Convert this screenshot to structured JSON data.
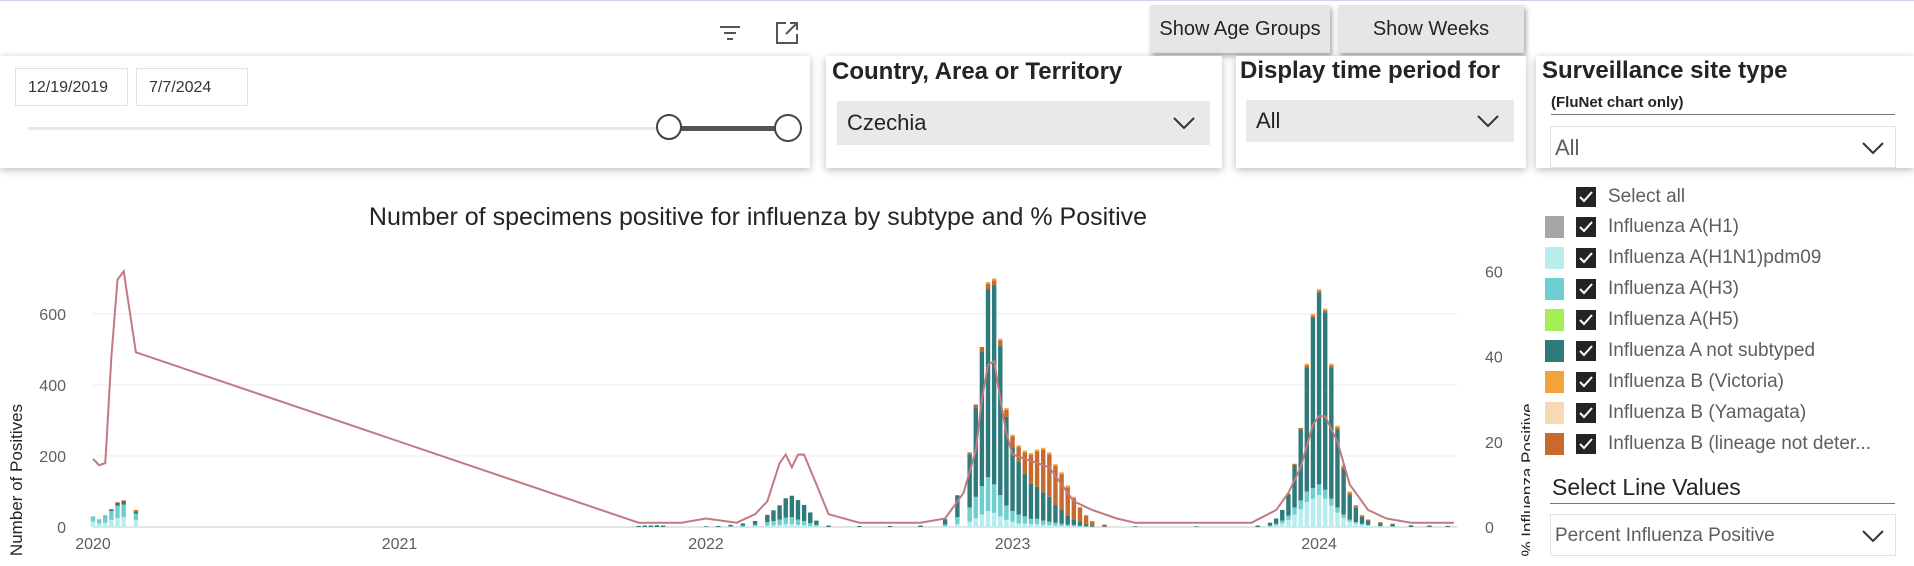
{
  "toolbar": {
    "show_age_groups": "Show Age Groups",
    "show_weeks": "Show Weeks"
  },
  "date_slicer": {
    "start": "12/19/2019",
    "end": "7/7/2024"
  },
  "country_slicer": {
    "title": "Country, Area or Territory",
    "value": "Czechia"
  },
  "period_slicer": {
    "title": "Display time period for",
    "value": "All"
  },
  "site_slicer": {
    "title": "Surveillance site type",
    "subtitle": "(FluNet chart only)",
    "value": "All"
  },
  "legend": {
    "select_all": "Select all",
    "items": [
      {
        "label": "Influenza A(H1)",
        "color": "#a6a6a6"
      },
      {
        "label": "Influenza A(H1N1)pdm09",
        "color": "#b9ecec"
      },
      {
        "label": "Influenza A(H3)",
        "color": "#6dcfcf"
      },
      {
        "label": "Influenza A(H5)",
        "color": "#a4ee55"
      },
      {
        "label": "Influenza A not subtyped",
        "color": "#2f7a7a"
      },
      {
        "label": "Influenza B (Victoria)",
        "color": "#f2a33a"
      },
      {
        "label": "Influenza B (Yamagata)",
        "color": "#f7d9b4"
      },
      {
        "label": "Influenza B (lineage not deter...",
        "color": "#c96a2c"
      }
    ]
  },
  "line_values": {
    "title": "Select Line Values",
    "value": "Percent Influenza Positive"
  },
  "chart_data": {
    "type": "bar",
    "title": "Number of specimens positive for influenza by subtype and % Positive",
    "ylabel": "Number of Positives",
    "y2label": "% Influenza Positive",
    "x_ticks": [
      "2020",
      "2021",
      "2022",
      "2023",
      "2024"
    ],
    "y_ticks": [
      "0",
      "200",
      "400",
      "600"
    ],
    "y2_ticks": [
      "0",
      "20",
      "40",
      "60"
    ],
    "ylim": [
      0,
      780
    ],
    "y2lim": [
      0,
      65
    ],
    "xlim": [
      2020.0,
      2024.45
    ],
    "stack_order": [
      "Influenza A(H1N1)pdm09",
      "Influenza A(H3)",
      "Influenza A not subtyped",
      "Influenza B (lineage not deter...",
      "Influenza B (Victoria)"
    ],
    "bars": [
      {
        "x": 2020.0,
        "values": [
          15,
          15,
          0,
          0,
          0
        ]
      },
      {
        "x": 2020.02,
        "values": [
          10,
          12,
          0,
          0,
          0
        ]
      },
      {
        "x": 2020.04,
        "values": [
          12,
          18,
          2,
          0,
          0
        ]
      },
      {
        "x": 2020.06,
        "values": [
          20,
          25,
          5,
          0,
          0
        ]
      },
      {
        "x": 2020.08,
        "values": [
          25,
          35,
          8,
          2,
          0
        ]
      },
      {
        "x": 2020.1,
        "values": [
          28,
          35,
          10,
          2,
          0
        ]
      },
      {
        "x": 2020.14,
        "values": [
          20,
          18,
          5,
          5,
          0
        ]
      },
      {
        "x": 2021.78,
        "values": [
          0,
          0,
          3,
          0,
          0
        ]
      },
      {
        "x": 2021.8,
        "values": [
          0,
          0,
          4,
          0,
          0
        ]
      },
      {
        "x": 2021.82,
        "values": [
          0,
          0,
          4,
          0,
          0
        ]
      },
      {
        "x": 2021.84,
        "values": [
          0,
          0,
          5,
          0,
          0
        ]
      },
      {
        "x": 2021.86,
        "values": [
          0,
          0,
          4,
          0,
          0
        ]
      },
      {
        "x": 2022.0,
        "values": [
          0,
          0,
          2,
          0,
          0
        ]
      },
      {
        "x": 2022.04,
        "values": [
          0,
          0,
          3,
          0,
          0
        ]
      },
      {
        "x": 2022.08,
        "values": [
          0,
          2,
          4,
          0,
          0
        ]
      },
      {
        "x": 2022.12,
        "values": [
          0,
          4,
          6,
          0,
          0
        ]
      },
      {
        "x": 2022.16,
        "values": [
          2,
          5,
          10,
          0,
          0
        ]
      },
      {
        "x": 2022.2,
        "values": [
          4,
          10,
          20,
          0,
          0
        ]
      },
      {
        "x": 2022.22,
        "values": [
          5,
          12,
          30,
          0,
          0
        ]
      },
      {
        "x": 2022.24,
        "values": [
          6,
          15,
          40,
          0,
          0
        ]
      },
      {
        "x": 2022.26,
        "values": [
          8,
          18,
          55,
          0,
          0
        ]
      },
      {
        "x": 2022.28,
        "values": [
          8,
          20,
          60,
          0,
          0
        ]
      },
      {
        "x": 2022.3,
        "values": [
          6,
          15,
          55,
          0,
          0
        ]
      },
      {
        "x": 2022.32,
        "values": [
          5,
          12,
          45,
          0,
          0
        ]
      },
      {
        "x": 2022.34,
        "values": [
          3,
          8,
          30,
          0,
          0
        ]
      },
      {
        "x": 2022.36,
        "values": [
          2,
          4,
          12,
          0,
          0
        ]
      },
      {
        "x": 2022.4,
        "values": [
          0,
          0,
          4,
          0,
          0
        ]
      },
      {
        "x": 2022.5,
        "values": [
          0,
          0,
          3,
          0,
          0
        ]
      },
      {
        "x": 2022.6,
        "values": [
          0,
          0,
          3,
          0,
          0
        ]
      },
      {
        "x": 2022.7,
        "values": [
          0,
          0,
          4,
          0,
          0
        ]
      },
      {
        "x": 2022.78,
        "values": [
          2,
          5,
          15,
          0,
          0
        ]
      },
      {
        "x": 2022.82,
        "values": [
          8,
          20,
          60,
          2,
          0
        ]
      },
      {
        "x": 2022.86,
        "values": [
          15,
          40,
          150,
          5,
          0
        ]
      },
      {
        "x": 2022.88,
        "values": [
          25,
          60,
          250,
          10,
          0
        ]
      },
      {
        "x": 2022.9,
        "values": [
          35,
          80,
          380,
          12,
          0
        ]
      },
      {
        "x": 2022.92,
        "values": [
          45,
          95,
          530,
          15,
          5
        ]
      },
      {
        "x": 2022.94,
        "values": [
          40,
          80,
          560,
          15,
          5
        ]
      },
      {
        "x": 2022.96,
        "values": [
          30,
          60,
          420,
          15,
          5
        ]
      },
      {
        "x": 2022.98,
        "values": [
          20,
          40,
          250,
          20,
          5
        ]
      },
      {
        "x": 2023.0,
        "values": [
          15,
          30,
          180,
          30,
          5
        ]
      },
      {
        "x": 2023.02,
        "values": [
          10,
          25,
          150,
          40,
          5
        ]
      },
      {
        "x": 2023.04,
        "values": [
          10,
          20,
          120,
          60,
          5
        ]
      },
      {
        "x": 2023.06,
        "values": [
          8,
          15,
          100,
          80,
          5
        ]
      },
      {
        "x": 2023.08,
        "values": [
          8,
          15,
          90,
          100,
          5
        ]
      },
      {
        "x": 2023.1,
        "values": [
          6,
          12,
          80,
          120,
          5
        ]
      },
      {
        "x": 2023.12,
        "values": [
          5,
          10,
          70,
          120,
          5
        ]
      },
      {
        "x": 2023.14,
        "values": [
          4,
          8,
          50,
          110,
          5
        ]
      },
      {
        "x": 2023.16,
        "values": [
          3,
          6,
          40,
          100,
          5
        ]
      },
      {
        "x": 2023.18,
        "values": [
          2,
          5,
          25,
          80,
          5
        ]
      },
      {
        "x": 2023.2,
        "values": [
          2,
          4,
          15,
          60,
          4
        ]
      },
      {
        "x": 2023.22,
        "values": [
          1,
          3,
          10,
          40,
          3
        ]
      },
      {
        "x": 2023.24,
        "values": [
          0,
          2,
          5,
          25,
          2
        ]
      },
      {
        "x": 2023.26,
        "values": [
          0,
          1,
          3,
          12,
          1
        ]
      },
      {
        "x": 2023.3,
        "values": [
          0,
          0,
          2,
          5,
          0
        ]
      },
      {
        "x": 2023.4,
        "values": [
          0,
          0,
          2,
          0,
          0
        ]
      },
      {
        "x": 2023.6,
        "values": [
          0,
          0,
          2,
          0,
          0
        ]
      },
      {
        "x": 2023.8,
        "values": [
          0,
          0,
          4,
          0,
          0
        ]
      },
      {
        "x": 2023.84,
        "values": [
          2,
          2,
          8,
          0,
          0
        ]
      },
      {
        "x": 2023.86,
        "values": [
          5,
          4,
          15,
          0,
          0
        ]
      },
      {
        "x": 2023.88,
        "values": [
          10,
          8,
          30,
          0,
          0
        ]
      },
      {
        "x": 2023.9,
        "values": [
          20,
          12,
          60,
          2,
          0
        ]
      },
      {
        "x": 2023.92,
        "values": [
          35,
          20,
          120,
          3,
          0
        ]
      },
      {
        "x": 2023.94,
        "values": [
          50,
          25,
          200,
          4,
          0
        ]
      },
      {
        "x": 2023.96,
        "values": [
          70,
          30,
          350,
          5,
          5
        ]
      },
      {
        "x": 2023.98,
        "values": [
          80,
          30,
          480,
          5,
          5
        ]
      },
      {
        "x": 2024.0,
        "values": [
          90,
          30,
          540,
          5,
          5
        ]
      },
      {
        "x": 2024.02,
        "values": [
          80,
          25,
          500,
          5,
          5
        ]
      },
      {
        "x": 2024.04,
        "values": [
          60,
          20,
          370,
          5,
          5
        ]
      },
      {
        "x": 2024.06,
        "values": [
          40,
          15,
          220,
          5,
          5
        ]
      },
      {
        "x": 2024.08,
        "values": [
          25,
          10,
          130,
          5,
          5
        ]
      },
      {
        "x": 2024.1,
        "values": [
          15,
          6,
          70,
          5,
          4
        ]
      },
      {
        "x": 2024.12,
        "values": [
          10,
          4,
          40,
          5,
          3
        ]
      },
      {
        "x": 2024.14,
        "values": [
          6,
          3,
          20,
          3,
          2
        ]
      },
      {
        "x": 2024.16,
        "values": [
          4,
          2,
          12,
          2,
          2
        ]
      },
      {
        "x": 2024.2,
        "values": [
          2,
          1,
          8,
          2,
          1
        ]
      },
      {
        "x": 2024.24,
        "values": [
          1,
          1,
          6,
          1,
          1
        ]
      },
      {
        "x": 2024.3,
        "values": [
          0,
          0,
          4,
          1,
          0
        ]
      },
      {
        "x": 2024.36,
        "values": [
          0,
          0,
          4,
          0,
          0
        ]
      },
      {
        "x": 2024.42,
        "values": [
          0,
          0,
          3,
          0,
          0
        ]
      }
    ],
    "percent_positive_line": [
      [
        2020.0,
        16
      ],
      [
        2020.02,
        14.5
      ],
      [
        2020.04,
        15
      ],
      [
        2020.06,
        40
      ],
      [
        2020.08,
        58
      ],
      [
        2020.1,
        60
      ],
      [
        2020.14,
        41
      ],
      [
        2021.78,
        1
      ],
      [
        2021.86,
        1
      ],
      [
        2021.92,
        1
      ],
      [
        2022.0,
        2
      ],
      [
        2022.1,
        1
      ],
      [
        2022.16,
        3
      ],
      [
        2022.2,
        6
      ],
      [
        2022.24,
        15
      ],
      [
        2022.26,
        17
      ],
      [
        2022.28,
        14
      ],
      [
        2022.3,
        17
      ],
      [
        2022.32,
        17
      ],
      [
        2022.36,
        10
      ],
      [
        2022.4,
        3
      ],
      [
        2022.5,
        1
      ],
      [
        2022.6,
        1
      ],
      [
        2022.7,
        1
      ],
      [
        2022.78,
        2
      ],
      [
        2022.84,
        8
      ],
      [
        2022.88,
        18
      ],
      [
        2022.9,
        30
      ],
      [
        2022.92,
        38
      ],
      [
        2022.94,
        39
      ],
      [
        2022.96,
        30
      ],
      [
        2022.98,
        22
      ],
      [
        2023.0,
        17
      ],
      [
        2023.04,
        16
      ],
      [
        2023.08,
        15
      ],
      [
        2023.12,
        14
      ],
      [
        2023.16,
        10
      ],
      [
        2023.2,
        6
      ],
      [
        2023.26,
        4
      ],
      [
        2023.34,
        2
      ],
      [
        2023.4,
        1
      ],
      [
        2023.6,
        1
      ],
      [
        2023.78,
        1
      ],
      [
        2023.86,
        4
      ],
      [
        2023.9,
        8
      ],
      [
        2023.94,
        14
      ],
      [
        2023.98,
        24
      ],
      [
        2024.0,
        26
      ],
      [
        2024.02,
        26
      ],
      [
        2024.06,
        20
      ],
      [
        2024.1,
        10
      ],
      [
        2024.16,
        4
      ],
      [
        2024.22,
        2
      ],
      [
        2024.3,
        1
      ],
      [
        2024.44,
        1
      ]
    ]
  }
}
